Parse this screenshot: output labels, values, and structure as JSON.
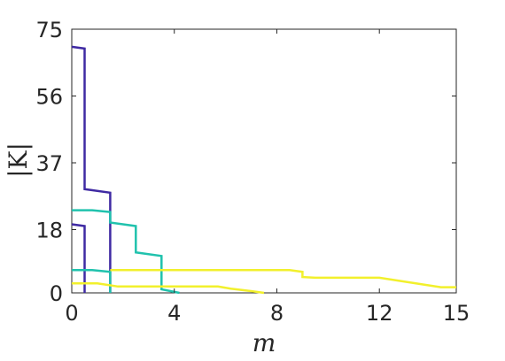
{
  "chart_data": {
    "type": "line",
    "title": "",
    "xlabel": "m",
    "ylabel": "|K|",
    "xlim": [
      0,
      15
    ],
    "ylim": [
      0,
      75
    ],
    "xticks": [
      0,
      4,
      8,
      12,
      15
    ],
    "yticks": [
      0,
      18,
      37,
      56,
      75
    ],
    "xtick_labels": [
      "0",
      "4",
      "8",
      "12",
      "15"
    ],
    "ytick_labels": [
      "0",
      "18",
      "37",
      "56",
      "75"
    ],
    "grid": false,
    "legend": "none",
    "series": [
      {
        "color": "#3f2aa3",
        "points": [
          [
            0,
            70
          ],
          [
            0.5,
            69.5
          ],
          [
            0.5,
            29.5
          ],
          [
            1.5,
            28.5
          ],
          [
            1.5,
            0
          ]
        ]
      },
      {
        "color": "#3f2aa3",
        "points": [
          [
            0,
            19.5
          ],
          [
            0.5,
            19
          ],
          [
            0.5,
            0
          ]
        ]
      },
      {
        "color": "#20c2ad",
        "points": [
          [
            0,
            23.5
          ],
          [
            0.8,
            23.5
          ],
          [
            1.5,
            23
          ],
          [
            1.5,
            20
          ],
          [
            2.5,
            19
          ],
          [
            2.5,
            11.5
          ],
          [
            3.5,
            10.5
          ],
          [
            3.5,
            1
          ],
          [
            4.2,
            0
          ]
        ]
      },
      {
        "color": "#20c2ad",
        "points": [
          [
            0,
            6.5
          ],
          [
            0.8,
            6.5
          ],
          [
            1.5,
            6
          ],
          [
            1.5,
            0
          ]
        ]
      },
      {
        "color": "#f2f02c",
        "points": [
          [
            1.5,
            6.5
          ],
          [
            8.5,
            6.5
          ],
          [
            9.0,
            6
          ],
          [
            9.0,
            4.5
          ],
          [
            9.5,
            4.3
          ],
          [
            12,
            4.3
          ],
          [
            14.4,
            1.6
          ],
          [
            15,
            1.6
          ]
        ]
      },
      {
        "color": "#f2f02c",
        "points": [
          [
            0,
            2.7
          ],
          [
            1.0,
            2.7
          ],
          [
            1.8,
            1.8
          ],
          [
            5.7,
            1.8
          ],
          [
            6.2,
            1.2
          ],
          [
            7.0,
            0.5
          ],
          [
            7.5,
            0
          ]
        ]
      }
    ]
  }
}
